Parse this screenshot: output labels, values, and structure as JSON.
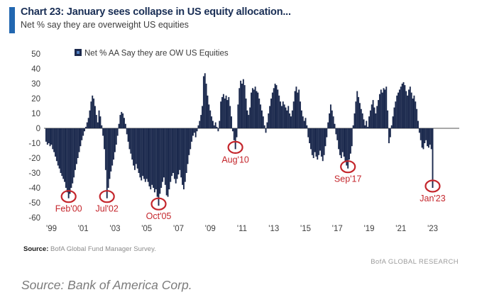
{
  "header": {
    "title": "Chart 23: January sees collapse in US equity allocation...",
    "subtitle": "Net % say they are overweight US equities",
    "accent_color": "#2267b0",
    "title_color": "#192e55"
  },
  "footer": {
    "source_label": "Source:",
    "source_text": "BofA Global Fund Manager Survey.",
    "research_credit": "BofA GLOBAL RESEARCH"
  },
  "caption": "Source: Bank of America Corp.",
  "chart_data": {
    "type": "bar",
    "legend": "Net % AA Say they are OW US Equities",
    "frequency": "monthly",
    "start_month": "1998-09",
    "end_month": "2023-01",
    "ylim": [
      -60,
      50
    ],
    "yticks": [
      50,
      40,
      30,
      20,
      10,
      0,
      -10,
      -20,
      -30,
      -40,
      -50,
      -60
    ],
    "xtick_labels": [
      "'99",
      "'01",
      "'03",
      "'05",
      "'07",
      "'09",
      "'11",
      "'13",
      "'15",
      "'17",
      "'19",
      "'21",
      "'23"
    ],
    "xtick_indices": [
      4,
      28,
      52,
      76,
      100,
      124,
      148,
      172,
      196,
      220,
      244,
      268,
      292
    ],
    "grid": false,
    "legend_position": "top-left",
    "bar_color": "#1b294d",
    "legend_inner_color": "#4f7ec0",
    "axis_text_color": "#404040",
    "zero_line_color": "#757575",
    "annotation_color": "#c4262c",
    "annotations": [
      {
        "label": "Feb'00",
        "index": 17,
        "value": -47
      },
      {
        "label": "Jul'02",
        "index": 46,
        "value": -47
      },
      {
        "label": "Oct'05",
        "index": 85,
        "value": -52
      },
      {
        "label": "Aug'10",
        "index": 143,
        "value": -14
      },
      {
        "label": "Sep'17",
        "index": 228,
        "value": -27
      },
      {
        "label": "Jan'23",
        "index": 292,
        "value": -40
      }
    ],
    "values": [
      -9,
      -11,
      -10,
      -12,
      -11,
      -14,
      -16,
      -19,
      -22,
      -25,
      -27,
      -30,
      -32,
      -34,
      -36,
      -40,
      -43,
      -47,
      -44,
      -40,
      -37,
      -33,
      -28,
      -24,
      -20,
      -16,
      -12,
      -8,
      -5,
      -2,
      1,
      4,
      7,
      12,
      18,
      22,
      20,
      15,
      9,
      4,
      12,
      8,
      2,
      -5,
      -14,
      -28,
      -47,
      -40,
      -34,
      -29,
      -25,
      -21,
      -16,
      -11,
      -5,
      3,
      9,
      11,
      10,
      7,
      3,
      -4,
      -9,
      -14,
      -17,
      -21,
      -25,
      -28,
      -24,
      -27,
      -30,
      -33,
      -35,
      -32,
      -34,
      -36,
      -34,
      -36,
      -39,
      -41,
      -38,
      -40,
      -43,
      -41,
      -46,
      -52,
      -44,
      -40,
      -36,
      -33,
      -38,
      -45,
      -46,
      -41,
      -36,
      -32,
      -30,
      -34,
      -37,
      -34,
      -31,
      -28,
      -33,
      -38,
      -41,
      -36,
      -30,
      -24,
      -18,
      -14,
      -9,
      -5,
      -3,
      -6,
      -2,
      2,
      5,
      9,
      15,
      35,
      37,
      30,
      22,
      16,
      12,
      8,
      5,
      2,
      4,
      1,
      -2,
      5,
      18,
      21,
      23,
      20,
      22,
      19,
      21,
      15,
      8,
      -2,
      -8,
      -14,
      -6,
      16,
      27,
      32,
      30,
      33,
      29,
      20,
      12,
      9,
      14,
      24,
      27,
      26,
      28,
      25,
      24,
      20,
      16,
      12,
      8,
      2,
      -3,
      4,
      10,
      15,
      20,
      24,
      27,
      30,
      29,
      26,
      22,
      18,
      15,
      18,
      16,
      14,
      12,
      15,
      10,
      8,
      12,
      18,
      25,
      28,
      24,
      26,
      18,
      12,
      8,
      5,
      7,
      2,
      -6,
      -10,
      -14,
      -18,
      -20,
      -16,
      -19,
      -21,
      -18,
      -15,
      -19,
      -22,
      -18,
      -12,
      -6,
      4,
      10,
      16,
      12,
      8,
      3,
      -4,
      -8,
      -14,
      -18,
      -20,
      -16,
      -19,
      -22,
      -25,
      -27,
      -21,
      -17,
      -12,
      2,
      10,
      18,
      25,
      21,
      17,
      13,
      10,
      6,
      2,
      5,
      1,
      8,
      12,
      16,
      19,
      14,
      10,
      15,
      19,
      23,
      26,
      24,
      27,
      26,
      28,
      12,
      -10,
      -6,
      2,
      8,
      14,
      18,
      22,
      24,
      26,
      28,
      30,
      31,
      29,
      25,
      22,
      26,
      28,
      24,
      20,
      22,
      18,
      13,
      5,
      -3,
      -8,
      -13,
      -14,
      -10,
      -8,
      -12,
      -13,
      -11,
      -14,
      -40
    ]
  }
}
